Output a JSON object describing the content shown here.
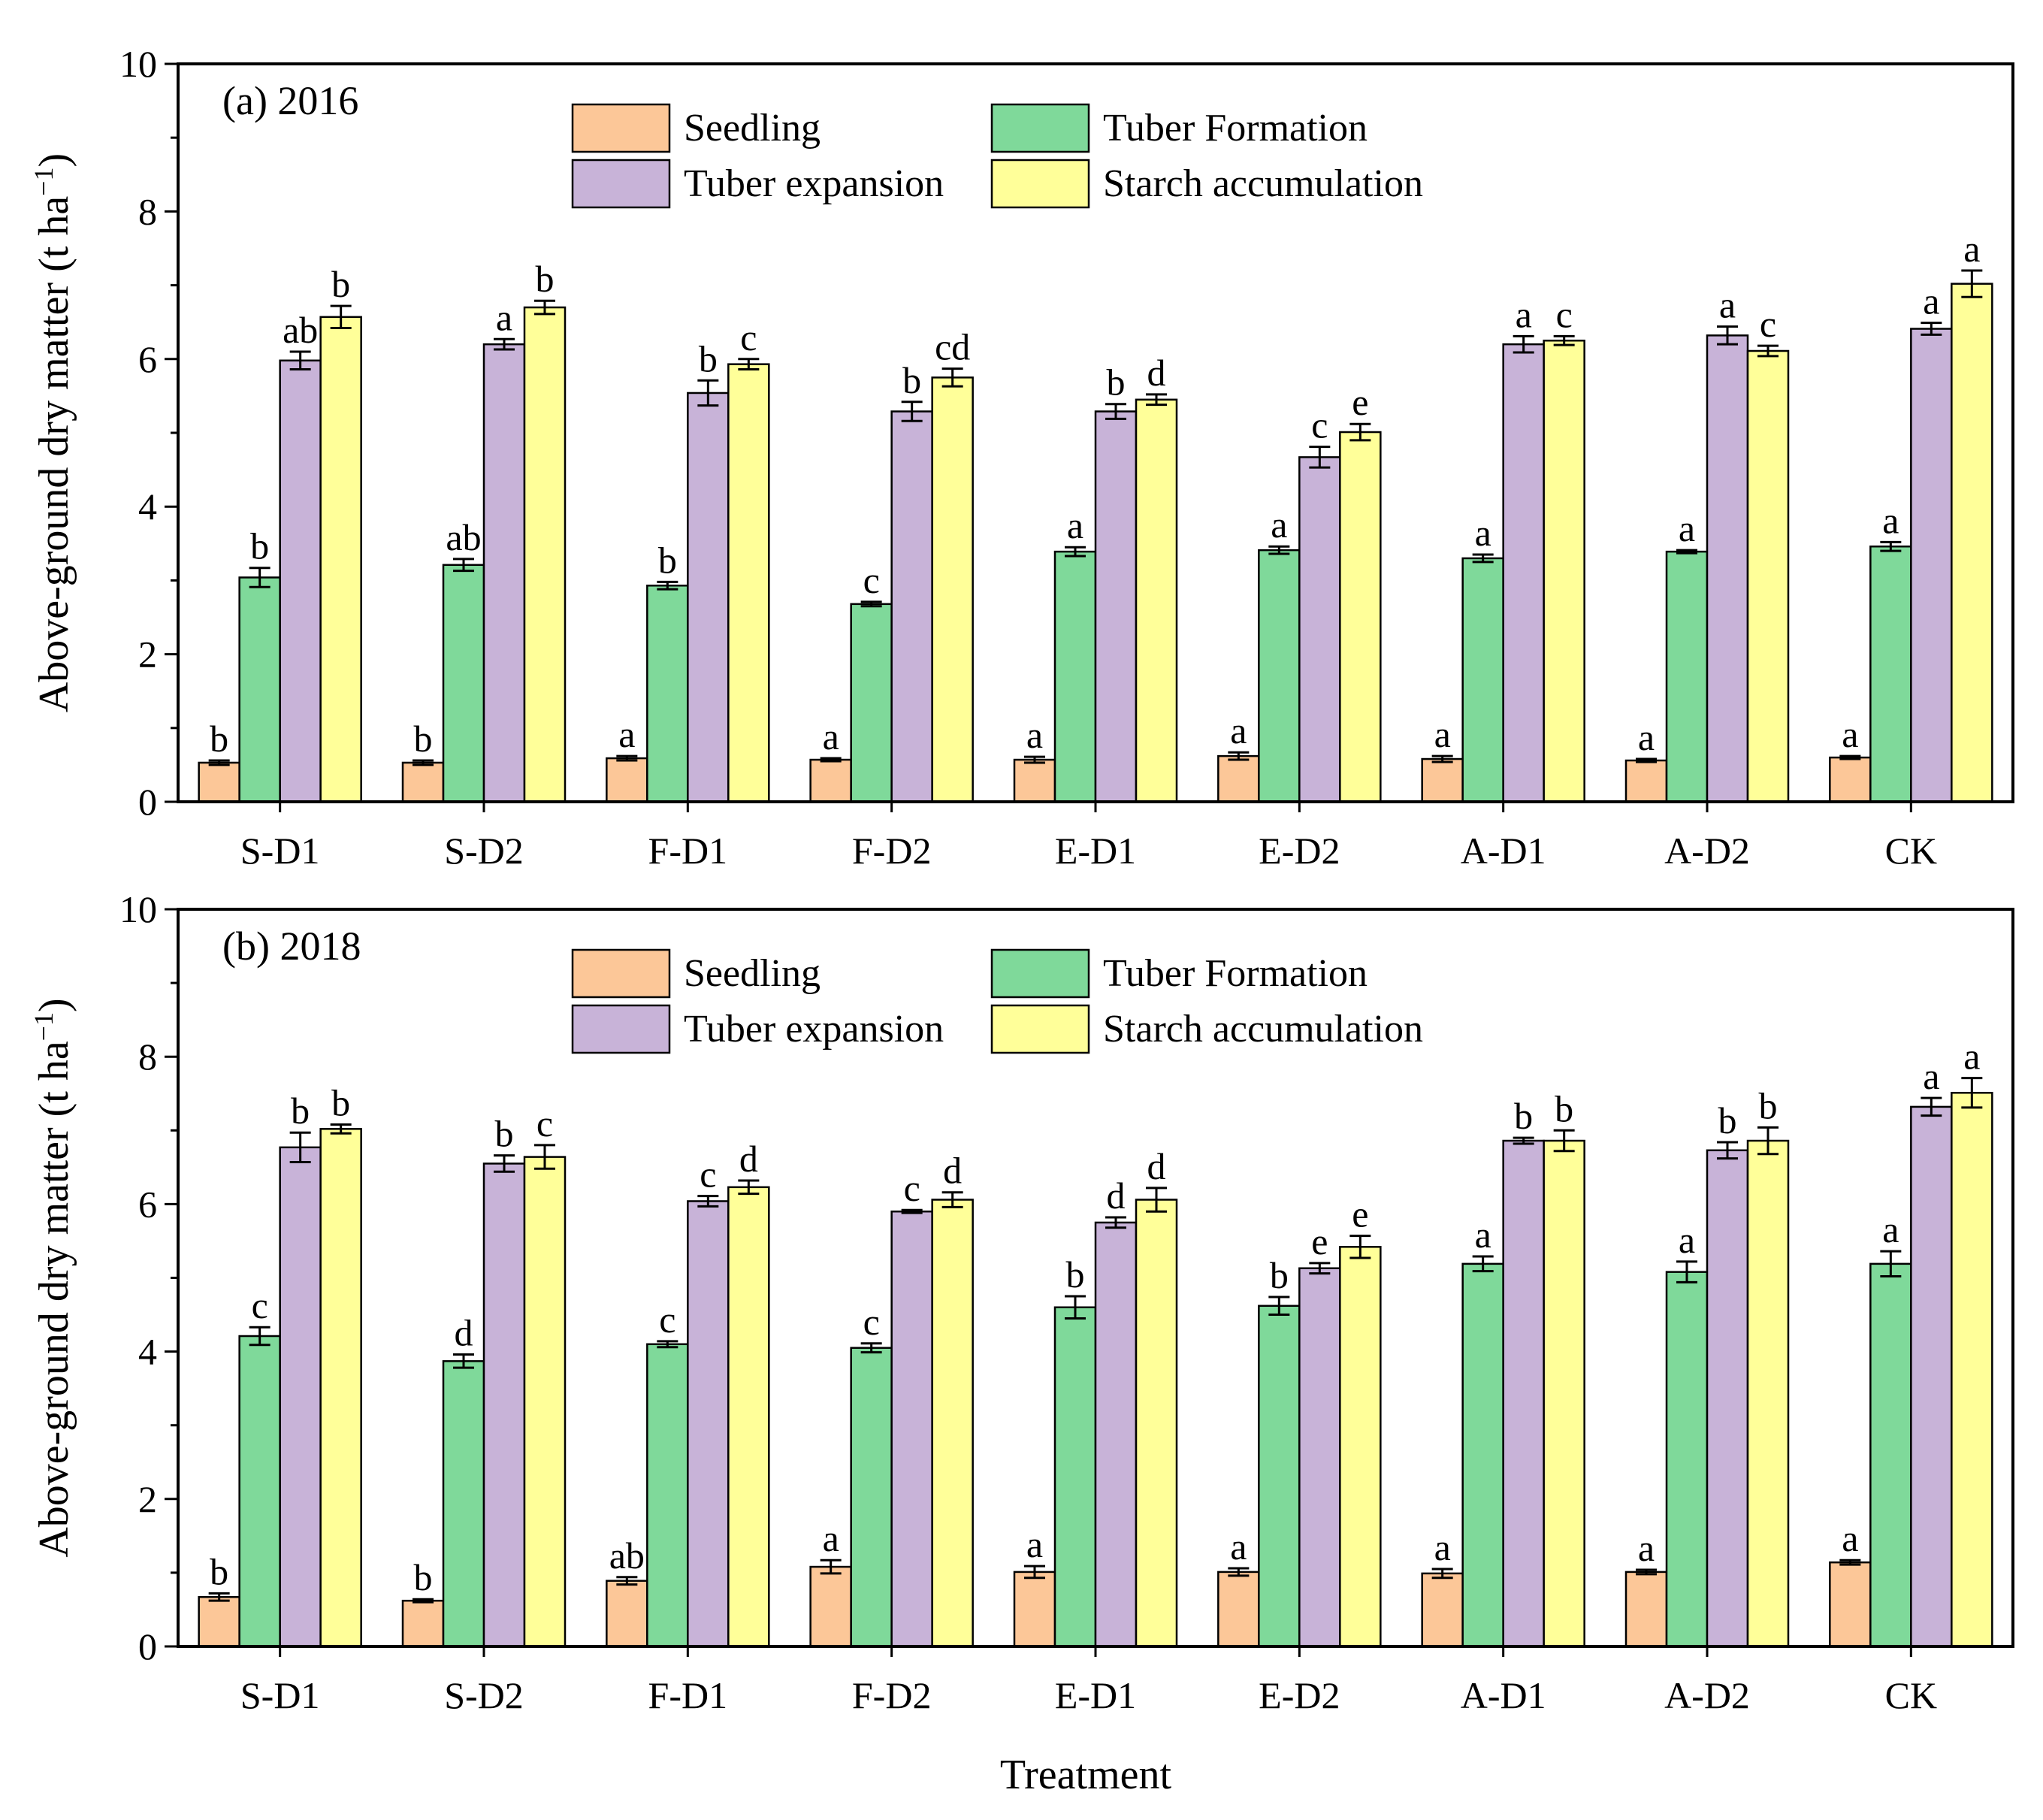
{
  "chart_data": [
    {
      "type": "bar",
      "title": "(a) 2016",
      "xlabel": "",
      "ylabel": "Above-ground dry matter (t ha",
      "ylabel_sup": "−1",
      "ylabel_close": ")",
      "ylim": [
        0,
        10
      ],
      "yticks": [
        "0",
        "2",
        "4",
        "6",
        "8",
        "10"
      ],
      "legend_placement": "top-center",
      "categories": [
        "S-D1",
        "S-D2",
        "F-D1",
        "F-D2",
        "E-D1",
        "E-D2",
        "A-D1",
        "A-D2",
        "CK"
      ],
      "series": [
        {
          "name": "Seedling",
          "color": "#FCC798",
          "values": [
            0.53,
            0.53,
            0.59,
            0.57,
            0.57,
            0.62,
            0.58,
            0.56,
            0.6
          ],
          "errors": [
            0.03,
            0.03,
            0.03,
            0.02,
            0.04,
            0.05,
            0.04,
            0.02,
            0.02
          ],
          "letters": [
            "b",
            "b",
            "a",
            "a",
            "a",
            "a",
            "a",
            "a",
            "a"
          ]
        },
        {
          "name": "Tuber Formation",
          "color": "#7FD99A",
          "values": [
            3.04,
            3.21,
            2.93,
            2.68,
            3.39,
            3.41,
            3.3,
            3.39,
            3.46
          ],
          "errors": [
            0.13,
            0.08,
            0.05,
            0.03,
            0.06,
            0.05,
            0.05,
            0.02,
            0.06
          ],
          "letters": [
            "b",
            "ab",
            "b",
            "c",
            "a",
            "a",
            "a",
            "a",
            "a"
          ]
        },
        {
          "name": "Tuber expansion",
          "color": "#C8B3D8",
          "values": [
            5.98,
            6.2,
            5.54,
            5.29,
            5.29,
            4.67,
            6.2,
            6.32,
            6.41
          ],
          "errors": [
            0.12,
            0.07,
            0.17,
            0.13,
            0.1,
            0.14,
            0.11,
            0.12,
            0.08
          ],
          "letters": [
            "ab",
            "a",
            "b",
            "b",
            "b",
            "c",
            "a",
            "a",
            "a"
          ]
        },
        {
          "name": "Starch accumulation",
          "color": "#FFFF99",
          "values": [
            6.57,
            6.7,
            5.93,
            5.75,
            5.45,
            5.01,
            6.25,
            6.11,
            7.02
          ],
          "errors": [
            0.15,
            0.09,
            0.07,
            0.12,
            0.07,
            0.11,
            0.06,
            0.07,
            0.18
          ],
          "letters": [
            "b",
            "b",
            "c",
            "cd",
            "d",
            "e",
            "c",
            "c",
            "a"
          ]
        }
      ]
    },
    {
      "type": "bar",
      "title": "(b) 2018",
      "xlabel": "Treatment",
      "ylabel": "Above-ground dry matter (t ha",
      "ylabel_sup": "−1",
      "ylabel_close": ")",
      "ylim": [
        0,
        10
      ],
      "yticks": [
        "0",
        "2",
        "4",
        "6",
        "8",
        "10"
      ],
      "legend_placement": "top-center",
      "categories": [
        "S-D1",
        "S-D2",
        "F-D1",
        "F-D2",
        "E-D1",
        "E-D2",
        "A-D1",
        "A-D2",
        "CK"
      ],
      "series": [
        {
          "name": "Seedling",
          "color": "#FCC798",
          "values": [
            0.67,
            0.62,
            0.89,
            1.08,
            1.01,
            1.01,
            0.99,
            1.01,
            1.14
          ],
          "errors": [
            0.05,
            0.02,
            0.05,
            0.09,
            0.08,
            0.05,
            0.06,
            0.03,
            0.03
          ],
          "letters": [
            "b",
            "b",
            "ab",
            "a",
            "a",
            "a",
            "a",
            "a",
            "a"
          ]
        },
        {
          "name": "Tuber Formation",
          "color": "#7FD99A",
          "values": [
            4.21,
            3.87,
            4.1,
            4.05,
            4.6,
            4.62,
            5.19,
            5.08,
            5.19
          ],
          "errors": [
            0.12,
            0.09,
            0.04,
            0.06,
            0.15,
            0.12,
            0.1,
            0.14,
            0.17
          ],
          "letters": [
            "c",
            "d",
            "c",
            "c",
            "b",
            "b",
            "a",
            "a",
            "a"
          ]
        },
        {
          "name": "Tuber expansion",
          "color": "#C8B3D8",
          "values": [
            6.77,
            6.55,
            6.04,
            5.9,
            5.75,
            5.13,
            6.86,
            6.73,
            7.32
          ],
          "errors": [
            0.2,
            0.11,
            0.07,
            0.02,
            0.07,
            0.07,
            0.04,
            0.11,
            0.12
          ],
          "letters": [
            "b",
            "b",
            "c",
            "c",
            "d",
            "e",
            "b",
            "b",
            "a"
          ]
        },
        {
          "name": "Starch accumulation",
          "color": "#FFFF99",
          "values": [
            7.02,
            6.64,
            6.23,
            6.06,
            6.06,
            5.42,
            6.86,
            6.86,
            7.51
          ],
          "errors": [
            0.06,
            0.16,
            0.09,
            0.1,
            0.16,
            0.15,
            0.14,
            0.18,
            0.2
          ],
          "letters": [
            "b",
            "c",
            "d",
            "d",
            "d",
            "e",
            "b",
            "b",
            "a"
          ]
        }
      ]
    }
  ]
}
